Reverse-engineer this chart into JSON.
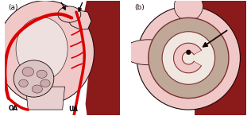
{
  "bg_color": "#ffffff",
  "panel_a_label": "(a)",
  "panel_b_label": "(b)",
  "oa_label": "OA",
  "ua_label": "UA",
  "pink_light": "#f0c8c8",
  "pink_medium": "#e8a8a8",
  "pink_inner": "#e8d0d0",
  "red_dark": "#8b1a1a",
  "red_vessel": "#dd0000",
  "gray_beige": "#c0a898",
  "outline_dark": "#1a0808",
  "label_color": "#000000",
  "fig_width": 3.16,
  "fig_height": 1.46,
  "dpi": 100
}
